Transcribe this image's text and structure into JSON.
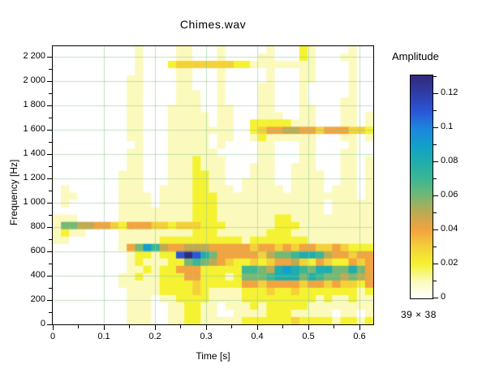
{
  "chart_data": {
    "type": "heatmap",
    "title": "Chimes.wav",
    "xlabel": "Time [s]",
    "ylabel": "Frequency [Hz]",
    "grid": {
      "show": true,
      "color": "#8fc98f"
    },
    "x_axis": {
      "range": [
        0,
        0.627
      ],
      "major_tick_values": [
        0,
        0.1,
        0.2,
        0.3,
        0.4,
        0.5,
        0.6
      ],
      "major_tick_labels": [
        "0",
        "0.1",
        "0.2",
        "0.3",
        "0.4",
        "0.5",
        "0.6"
      ],
      "minor_tick_values": [
        0.05,
        0.15,
        0.25,
        0.35,
        0.45,
        0.55
      ]
    },
    "y_axis": {
      "range": [
        0,
        2287
      ],
      "major_tick_values": [
        0,
        200,
        400,
        600,
        800,
        1000,
        1200,
        1400,
        1600,
        1800,
        2000,
        2200
      ],
      "major_tick_labels": [
        "0",
        "200",
        "400",
        "600",
        "800",
        "1 000",
        "1 200",
        "1 400",
        "1 600",
        "1 800",
        "2 000",
        "2 200"
      ],
      "minor_tick_values": [
        100,
        300,
        500,
        700,
        900,
        1100,
        1300,
        1500,
        1700,
        1900,
        2100
      ]
    },
    "colorbar": {
      "title": "Amplitude",
      "range": [
        0,
        0.131
      ],
      "major_tick_values": [
        0,
        0.02,
        0.04,
        0.06,
        0.08,
        0.1,
        0.12
      ],
      "major_tick_labels": [
        "0",
        "0.02",
        "0.04",
        "0.06",
        "0.08",
        "0.1",
        "0.12"
      ],
      "minor_tick_values": [
        0.01,
        0.03,
        0.05,
        0.07,
        0.09,
        0.11,
        0.13
      ],
      "size_label": "39 × 38"
    },
    "heatmap": {
      "n_time_bins": 39,
      "n_freq_bins": 38,
      "time_bin_s": 0.0161,
      "freq_bin_hz": 60,
      "amplitude_per_level": 0.01,
      "level_colors": [
        "#ffffff",
        "#fbfabc",
        "#f5f232",
        "#f4d138",
        "#f2a440",
        "#bfaa52",
        "#76b773",
        "#3db693",
        "#1fadad",
        "#129fcb",
        "#1d85dd",
        "#2b55d8",
        "#2e3da8",
        "#322a7e"
      ],
      "levels_rows_top_to_bottom": [
        "000000000010000110001000001000210000100",
        "000000000010000110001000011000210001100",
        "000000000010002333333322111111110000100",
        "000000000010000110001000001000110000100",
        "000000000110000110001000001000110000100",
        "000000000110000110001000011000100000100",
        "000000000110000111001000011000100000100",
        "000000000110000111001000011000100001100",
        "000000000110001111001100011000110001100",
        "000000000110001111101100011100110001101",
        "000000000110001111101100222221110001101",
        "000000000110001111111100234455443444332",
        "000000000110001111101100121111110001101",
        "000000000010001111101000011000110000100",
        "000000000110001111110000011000110001100",
        "000000000110001112111000011000110001101",
        "000000000110001112111000111001110001101",
        "000000001110001112211000111001111001101",
        "000000001110001112211001111001111001101",
        "010000001110011112211101111101111011101",
        "011000001111011112221111111111111111101",
        "010000001111011112221111111111111011111",
        "000000001111111112221111111111111011111",
        "111000001111111112221111111221111111111",
        "166554432444332333222111111222111111111",
        "121100001111111112221111112221111111111",
        "110000001111122222222221222222211111111",
        "000000001469754455544444344343443343222",
        "000000000122122bdb864444435667887544344",
        "000000000121112267654322323445324322434",
        "000000000112122444222227765898768866864",
        "000000001121122244222126667888687665654",
        "000000001111122223222224434444344343324",
        "000000000111122223211112223223222222212",
        "000000000111011222211112222222221211211",
        "000000000111001122110111212222211111111",
        "000000000111001122110011112221111101101",
        "000000000111001122111112222223222212212"
      ]
    }
  }
}
